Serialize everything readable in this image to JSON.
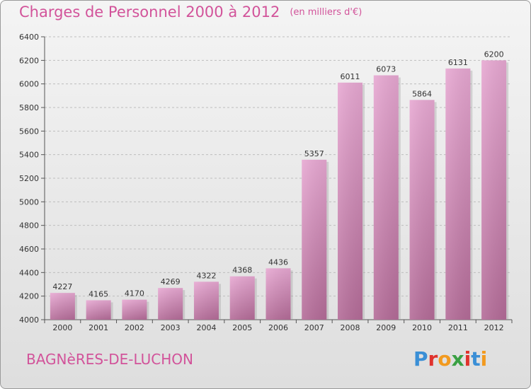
{
  "header": {
    "title": "Charges de Personnel 2000 à 2012",
    "unit": "(en milliers d'€)"
  },
  "footer": {
    "place": "BAGNèRES-DE-LUCHON",
    "logo": "Proxiti"
  },
  "colors": {
    "accent": "#d2539a",
    "bar_light": "#e7a8d2",
    "bar_dark": "#b46c98",
    "logo_letters": [
      "#3a8fd6",
      "#e0322d",
      "#f29a1f",
      "#3aa043",
      "#e0322d",
      "#3a8fd6",
      "#f29a1f"
    ]
  },
  "chart_data": {
    "type": "bar",
    "categories": [
      "2000",
      "2001",
      "2002",
      "2003",
      "2004",
      "2005",
      "2006",
      "2007",
      "2008",
      "2009",
      "2010",
      "2011",
      "2012"
    ],
    "values": [
      4227,
      4165,
      4170,
      4269,
      4322,
      4368,
      4436,
      5357,
      6011,
      6073,
      5864,
      6131,
      6200
    ],
    "ylim": [
      4000,
      6400
    ],
    "yticks": [
      4000,
      4200,
      4400,
      4600,
      4800,
      5000,
      5200,
      5400,
      5600,
      5800,
      6000,
      6200,
      6400
    ],
    "grid": true,
    "xlabel": "",
    "ylabel": ""
  }
}
